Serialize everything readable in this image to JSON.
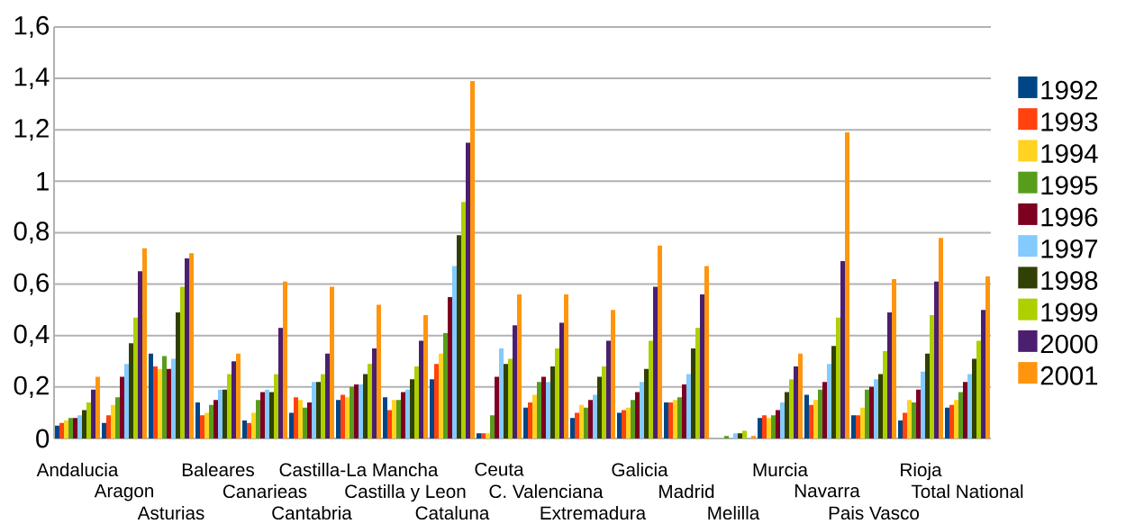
{
  "chart_data": {
    "type": "bar",
    "categories": [
      "Andalucia",
      "Aragon",
      "Asturias",
      "Baleares",
      "Canarieas",
      "Cantabria",
      "Castilla-La Mancha",
      "Castilla y Leon",
      "Cataluna",
      "Ceuta",
      "C. Valenciana",
      "Extremadura",
      "Galicia",
      "Madrid",
      "Melilla",
      "Murcia",
      "Navarra",
      "Pais Vasco",
      "Rioja",
      "Total National"
    ],
    "series": [
      {
        "name": "1992",
        "color": "#004586",
        "values": [
          0.05,
          0.06,
          0.33,
          0.14,
          0.07,
          0.1,
          0.15,
          0.16,
          0.23,
          0.02,
          0.12,
          0.08,
          0.1,
          0.14,
          0,
          0.08,
          0.17,
          0.09,
          0.07,
          0.12
        ]
      },
      {
        "name": "1993",
        "color": "#ff420e",
        "values": [
          0.06,
          0.09,
          0.28,
          0.09,
          0.06,
          0.16,
          0.17,
          0.11,
          0.29,
          0.02,
          0.14,
          0.1,
          0.11,
          0.14,
          0,
          0.09,
          0.13,
          0.09,
          0.1,
          0.13
        ]
      },
      {
        "name": "1994",
        "color": "#ffd320",
        "values": [
          0.07,
          0.13,
          0.27,
          0.1,
          0.1,
          0.15,
          0.16,
          0.15,
          0.33,
          0.02,
          0.17,
          0.13,
          0.12,
          0.15,
          0,
          0.08,
          0.15,
          0.12,
          0.15,
          0.15
        ]
      },
      {
        "name": "1995",
        "color": "#579d1c",
        "values": [
          0.08,
          0.16,
          0.32,
          0.13,
          0.15,
          0.12,
          0.2,
          0.15,
          0.41,
          0.09,
          0.22,
          0.12,
          0.15,
          0.16,
          0.01,
          0.09,
          0.19,
          0.19,
          0.14,
          0.18
        ]
      },
      {
        "name": "1996",
        "color": "#7e0021",
        "values": [
          0.08,
          0.24,
          0.27,
          0.15,
          0.18,
          0.14,
          0.21,
          0.18,
          0.55,
          0.24,
          0.24,
          0.15,
          0.18,
          0.21,
          0,
          0.11,
          0.22,
          0.2,
          0.19,
          0.22
        ]
      },
      {
        "name": "1997",
        "color": "#83caff",
        "values": [
          0.09,
          0.29,
          0.31,
          0.19,
          0.19,
          0.22,
          0.21,
          0.19,
          0.67,
          0.35,
          0.22,
          0.17,
          0.22,
          0.25,
          0.02,
          0.14,
          0.29,
          0.23,
          0.26,
          0.25
        ]
      },
      {
        "name": "1998",
        "color": "#314004",
        "values": [
          0.11,
          0.37,
          0.49,
          0.19,
          0.18,
          0.22,
          0.25,
          0.23,
          0.79,
          0.29,
          0.28,
          0.24,
          0.27,
          0.35,
          0.02,
          0.18,
          0.36,
          0.25,
          0.33,
          0.31
        ]
      },
      {
        "name": "1999",
        "color": "#aecf00",
        "values": [
          0.14,
          0.47,
          0.59,
          0.25,
          0.25,
          0.25,
          0.29,
          0.28,
          0.92,
          0.31,
          0.35,
          0.28,
          0.38,
          0.43,
          0.03,
          0.23,
          0.47,
          0.34,
          0.48,
          0.38
        ]
      },
      {
        "name": "2000",
        "color": "#4b1f6f",
        "values": [
          0.19,
          0.65,
          0.7,
          0.3,
          0.43,
          0.33,
          0.35,
          0.38,
          1.15,
          0.44,
          0.45,
          0.38,
          0.59,
          0.56,
          0,
          0.28,
          0.69,
          0.49,
          0.61,
          0.5
        ]
      },
      {
        "name": "2001",
        "color": "#ff950e",
        "values": [
          0.24,
          0.74,
          0.72,
          0.33,
          0.61,
          0.59,
          0.52,
          0.48,
          1.39,
          0.56,
          0.56,
          0.5,
          0.75,
          0.67,
          0.01,
          0.33,
          1.19,
          0.62,
          0.78,
          0.63
        ]
      }
    ],
    "ylim": [
      0,
      1.6
    ],
    "yticks": [
      0,
      {
        "value": 0.2,
        "label": "0,2"
      },
      {
        "value": 0.4,
        "label": "0,4"
      },
      {
        "value": 0.6,
        "label": "0,6"
      },
      {
        "value": 0.8,
        "label": "0,8"
      },
      1,
      {
        "value": 1.2,
        "label": "1,2"
      },
      {
        "value": 1.4,
        "label": "1,4"
      },
      {
        "value": 1.6,
        "label": "1,6"
      }
    ],
    "grid": "y",
    "legend": "right"
  }
}
